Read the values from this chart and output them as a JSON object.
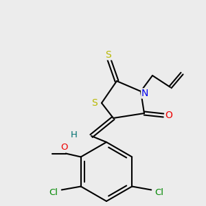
{
  "bg_color": "#ececec",
  "atom_colors": {
    "S": "#b8b800",
    "N": "#0000ee",
    "O": "#ee0000",
    "Cl": "#008800",
    "H": "#007070",
    "C": "#000000"
  },
  "bond_color": "#000000",
  "bond_lw": 1.5
}
